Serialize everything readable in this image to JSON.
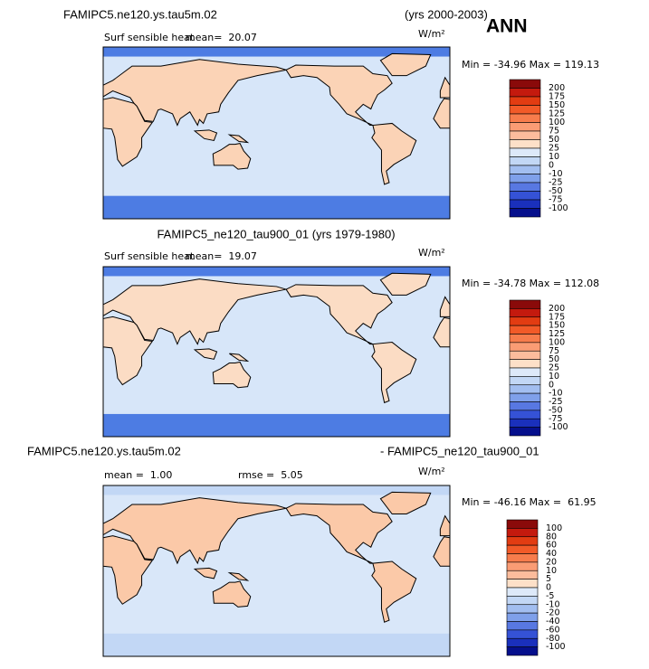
{
  "panels": [
    {
      "title_left": "FAMIPC5.ne120.ys.tau5m.02",
      "title_right": "(yrs 2000-2003)",
      "season": "ANN",
      "variable": "Surf sensible heat",
      "stat": "mean=  20.07",
      "units": "W/m²",
      "minmax": "Min = -34.96 Max = 119.13",
      "colorbar": {
        "levels": [
          200,
          175,
          150,
          125,
          100,
          75,
          50,
          25,
          10,
          0,
          -10,
          -25,
          -50,
          -75,
          -100
        ]
      }
    },
    {
      "title_left": "FAMIPC5_ne120_tau900_01 (yrs 1979-1980)",
      "variable": "Surf sensible heat",
      "stat": "mean=  19.07",
      "units": "W/m²",
      "minmax": "Min = -34.78 Max = 112.08",
      "colorbar": {
        "levels": [
          200,
          175,
          150,
          125,
          100,
          75,
          50,
          25,
          10,
          0,
          -10,
          -25,
          -50,
          -75,
          -100
        ]
      }
    },
    {
      "title_left": "FAMIPC5.ne120.ys.tau5m.02",
      "title_right": "- FAMIPC5_ne120_tau900_01",
      "stat": "mean =  1.00",
      "stat2": "rmse =  5.05",
      "units": "W/m²",
      "minmax": "Min = -46.16 Max =  61.95",
      "colorbar": {
        "levels": [
          100,
          80,
          60,
          40,
          20,
          10,
          5,
          0,
          -5,
          -10,
          -20,
          -40,
          -60,
          -80,
          -100
        ]
      }
    }
  ],
  "colorbar_colors": [
    "#8a0a0a",
    "#c41a0e",
    "#e23c12",
    "#f25a28",
    "#f77c4c",
    "#fa9c74",
    "#fcbc9c",
    "#fde0c8",
    "#dde9f9",
    "#c2d7f5",
    "#a2bef0",
    "#7fa0ea",
    "#5878e2",
    "#3552d6",
    "#1a30bc",
    "#050f8c"
  ]
}
